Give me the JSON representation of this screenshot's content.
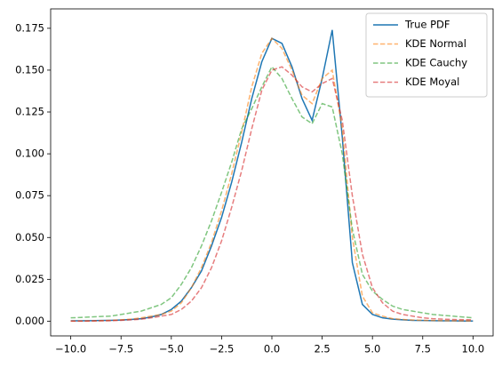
{
  "chart_data": {
    "type": "line",
    "x": [
      -10,
      -9.5,
      -9,
      -8.5,
      -8,
      -7.5,
      -7,
      -6.5,
      -6,
      -5.5,
      -5,
      -4.5,
      -4,
      -3.5,
      -3,
      -2.5,
      -2,
      -1.5,
      -1,
      -0.5,
      0,
      0.5,
      1,
      1.5,
      2,
      2.5,
      3,
      3.5,
      4,
      4.5,
      5,
      5.5,
      6,
      6.5,
      7,
      7.5,
      8,
      8.5,
      9,
      9.5,
      10
    ],
    "series": [
      {
        "name": "True PDF",
        "color": "#1f77b4",
        "linestyle": "solid",
        "alpha": 1,
        "values": [
          0.0002,
          0.0002,
          0.0003,
          0.0004,
          0.0005,
          0.0007,
          0.001,
          0.0015,
          0.0025,
          0.004,
          0.007,
          0.012,
          0.02,
          0.03,
          0.045,
          0.062,
          0.083,
          0.107,
          0.133,
          0.155,
          0.169,
          0.166,
          0.152,
          0.133,
          0.12,
          0.145,
          0.174,
          0.11,
          0.035,
          0.01,
          0.004,
          0.002,
          0.0012,
          0.0008,
          0.0005,
          0.0004,
          0.0003,
          0.0002,
          0.0002,
          0.0001,
          0.0001
        ]
      },
      {
        "name": "KDE Normal",
        "color": "#ff7f0e",
        "linestyle": "dashed",
        "alpha": 0.6,
        "values": [
          0.0001,
          0.0001,
          0.0002,
          0.0003,
          0.0005,
          0.0008,
          0.0012,
          0.002,
          0.003,
          0.004,
          0.006,
          0.011,
          0.02,
          0.032,
          0.047,
          0.066,
          0.088,
          0.113,
          0.14,
          0.16,
          0.169,
          0.163,
          0.15,
          0.135,
          0.13,
          0.145,
          0.15,
          0.115,
          0.05,
          0.015,
          0.005,
          0.003,
          0.0015,
          0.001,
          0.0007,
          0.0005,
          0.0004,
          0.0003,
          0.0002,
          0.0002,
          0.0001
        ]
      },
      {
        "name": "KDE Cauchy",
        "color": "#2ca02c",
        "linestyle": "dashed",
        "alpha": 0.6,
        "values": [
          0.002,
          0.0022,
          0.0025,
          0.0028,
          0.003,
          0.004,
          0.005,
          0.006,
          0.008,
          0.01,
          0.014,
          0.022,
          0.032,
          0.045,
          0.06,
          0.077,
          0.095,
          0.115,
          0.127,
          0.14,
          0.152,
          0.145,
          0.133,
          0.122,
          0.118,
          0.13,
          0.128,
          0.1,
          0.055,
          0.028,
          0.018,
          0.013,
          0.009,
          0.007,
          0.006,
          0.005,
          0.004,
          0.0035,
          0.003,
          0.0025,
          0.002
        ]
      },
      {
        "name": "KDE Moyal",
        "color": "#d62728",
        "linestyle": "dashed",
        "alpha": 0.6,
        "values": [
          0,
          0,
          0.0001,
          0.0002,
          0.0003,
          0.0005,
          0.0008,
          0.0012,
          0.002,
          0.003,
          0.004,
          0.007,
          0.012,
          0.02,
          0.032,
          0.048,
          0.068,
          0.09,
          0.115,
          0.138,
          0.15,
          0.152,
          0.147,
          0.14,
          0.137,
          0.142,
          0.145,
          0.12,
          0.075,
          0.04,
          0.02,
          0.011,
          0.006,
          0.004,
          0.003,
          0.002,
          0.0015,
          0.0012,
          0.001,
          0.0009,
          0.0008
        ]
      }
    ],
    "xlim": [
      -11,
      11
    ],
    "ylim": [
      -0.0088,
      0.1866
    ],
    "xticks": [
      {
        "value": -10,
        "label": "−10.0"
      },
      {
        "value": -7.5,
        "label": "−7.5"
      },
      {
        "value": -5,
        "label": "−5.0"
      },
      {
        "value": -2.5,
        "label": "−2.5"
      },
      {
        "value": 0,
        "label": "0.0"
      },
      {
        "value": 2.5,
        "label": "2.5"
      },
      {
        "value": 5,
        "label": "5.0"
      },
      {
        "value": 7.5,
        "label": "7.5"
      },
      {
        "value": 10,
        "label": "10.0"
      }
    ],
    "yticks": [
      {
        "value": 0,
        "label": "0.000"
      },
      {
        "value": 0.025,
        "label": "0.025"
      },
      {
        "value": 0.05,
        "label": "0.050"
      },
      {
        "value": 0.075,
        "label": "0.075"
      },
      {
        "value": 0.1,
        "label": "0.100"
      },
      {
        "value": 0.125,
        "label": "0.125"
      },
      {
        "value": 0.15,
        "label": "0.150"
      },
      {
        "value": 0.175,
        "label": "0.175"
      }
    ],
    "grid": false,
    "legend": "upper right"
  }
}
